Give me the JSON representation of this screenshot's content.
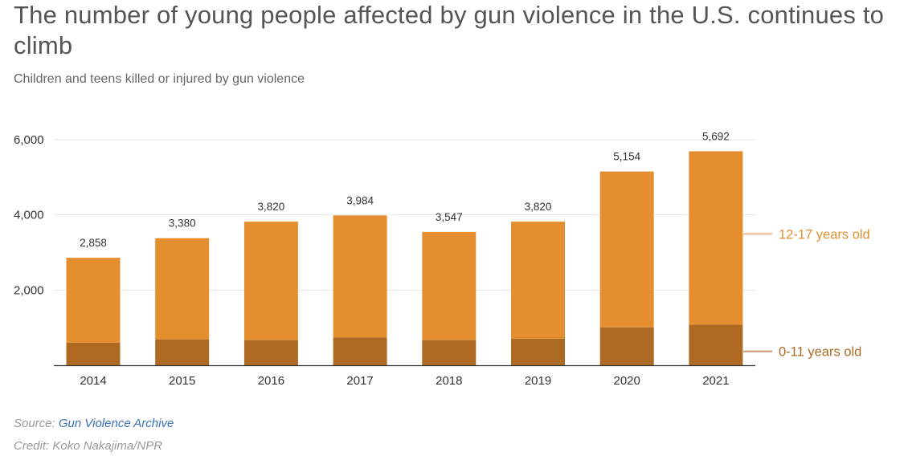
{
  "title": "The number of young people affected by gun violence in the U.S. continues to climb",
  "subtitle": "Children and teens killed or injured by gun violence",
  "source": {
    "label": "Source:",
    "link_text": "Gun Violence Archive"
  },
  "credit": "Credit: Koko Nakajima/NPR",
  "colors": {
    "teens": "#e58e2f",
    "children": "#ae6a22",
    "legend_teens_line": "#f0c5a0",
    "legend_children_line": "#d2aa87",
    "grid": "#e6e6e6",
    "axis": "#333333",
    "text": "#333333"
  },
  "chart_data": {
    "type": "bar",
    "stacked": true,
    "categories": [
      "2014",
      "2015",
      "2016",
      "2017",
      "2018",
      "2019",
      "2020",
      "2021"
    ],
    "series": [
      {
        "name": "0-11 years old",
        "values": [
          600,
          690,
          670,
          740,
          670,
          710,
          1010,
          1080
        ]
      },
      {
        "name": "12-17 years old",
        "values": [
          2258,
          2690,
          3150,
          3244,
          2877,
          3110,
          4144,
          4612
        ]
      }
    ],
    "totals": [
      2858,
      3380,
      3820,
      3984,
      3547,
      3820,
      5154,
      5692
    ],
    "total_labels": [
      "2,858",
      "3,380",
      "3,820",
      "3,984",
      "3,547",
      "3,820",
      "5,154",
      "5,692"
    ],
    "yticks": [
      2000,
      4000,
      6000
    ],
    "ytick_labels": [
      "2,000",
      "4,000",
      "6,000"
    ],
    "ylim": [
      0,
      6000
    ],
    "grid": true,
    "legend_position": "right"
  }
}
